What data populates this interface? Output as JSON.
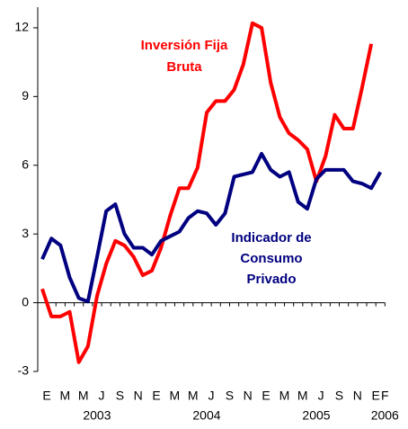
{
  "chart_data": {
    "type": "line",
    "categories": [
      "E",
      null,
      "M",
      null,
      "M",
      null,
      "J",
      null,
      "S",
      null,
      "N",
      null,
      "E",
      null,
      "M",
      null,
      "M",
      null,
      "J",
      null,
      "S",
      null,
      "N",
      null,
      "E",
      null,
      "M",
      null,
      "M",
      null,
      "J",
      null,
      "S",
      null,
      "N",
      null,
      "E",
      "F"
    ],
    "years": [
      "2003",
      "2004",
      "2005",
      "2006"
    ],
    "series": [
      {
        "color": "#ff0000",
        "values": [
          0.6,
          -0.6,
          -0.6,
          -0.4,
          -2.6,
          -1.9,
          0.3,
          1.7,
          2.7,
          2.5,
          2.0,
          1.2,
          1.4,
          2.4,
          3.8,
          5.0,
          5.0,
          5.9,
          8.3,
          8.8,
          8.8,
          9.3,
          10.4,
          12.2,
          12.0,
          9.6,
          8.1,
          7.4,
          7.1,
          6.7,
          5.3,
          6.4,
          8.2,
          7.6,
          7.6,
          9.4,
          11.3,
          null
        ]
      },
      {
        "color": "#000080",
        "values": [
          1.9,
          2.8,
          2.5,
          1.1,
          0.2,
          0.05,
          2.0,
          4.0,
          4.3,
          3.0,
          2.4,
          2.4,
          2.1,
          2.7,
          2.9,
          3.1,
          3.7,
          4.0,
          3.9,
          3.4,
          3.9,
          5.5,
          5.6,
          5.7,
          6.5,
          5.8,
          5.5,
          5.7,
          4.4,
          4.1,
          5.4,
          5.8,
          5.8,
          5.8,
          5.3,
          5.2,
          5.0,
          5.7
        ]
      }
    ],
    "annotations": [
      {
        "lines": [
          "Inversión Fija",
          "Bruta"
        ],
        "color": "#ff0000"
      },
      {
        "lines": [
          "Indicador de",
          "Consumo",
          "Privado"
        ],
        "color": "#000080"
      }
    ],
    "ylim": [
      -3,
      12.9
    ],
    "yticks": [
      -3,
      0,
      3,
      6,
      9,
      12
    ]
  }
}
